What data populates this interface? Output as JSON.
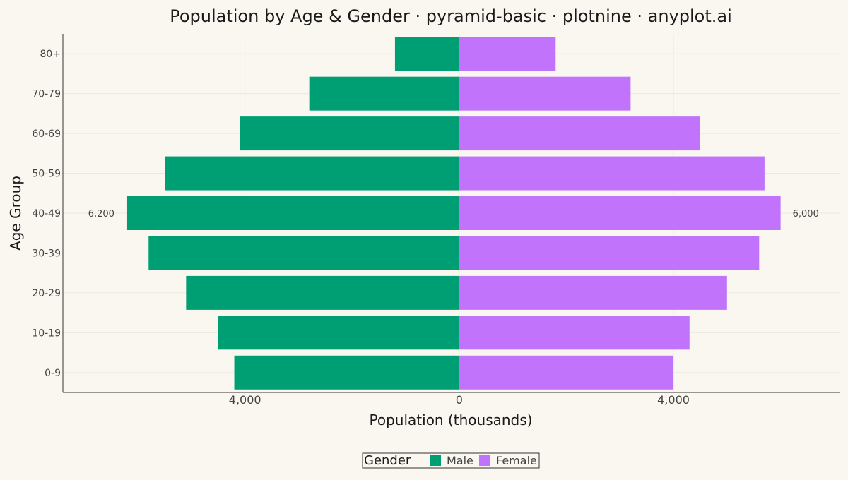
{
  "chart_data": {
    "type": "bar",
    "orientation": "horizontal-diverging",
    "title": "Population by Age & Gender · pyramid-basic · plotnine · anyplot.ai",
    "xlabel": "Population (thousands)",
    "ylabel": "Age Group",
    "categories": [
      "0-9",
      "10-19",
      "20-29",
      "30-39",
      "40-49",
      "50-59",
      "60-69",
      "70-79",
      "80+"
    ],
    "series": [
      {
        "name": "Male",
        "side": "left",
        "color": "#009E73",
        "values": [
          4200,
          4500,
          5100,
          5800,
          6200,
          5500,
          4100,
          2800,
          1200
        ]
      },
      {
        "name": "Female",
        "side": "right",
        "color": "#C174FB",
        "values": [
          4000,
          4300,
          5000,
          5600,
          6000,
          5700,
          4500,
          3200,
          1800
        ]
      }
    ],
    "xlim": [
      -7400,
      7100
    ],
    "xticks": [
      {
        "value": -4000,
        "label": "4,000"
      },
      {
        "value": 0,
        "label": "0"
      },
      {
        "value": 4000,
        "label": "4,000"
      }
    ],
    "data_labels": [
      {
        "series": "Male",
        "category": "40-49",
        "text": "6,200"
      },
      {
        "series": "Female",
        "category": "40-49",
        "text": "6,000"
      }
    ],
    "legend": {
      "title": "Gender",
      "position": "bottom",
      "entries": [
        "Male",
        "Female"
      ]
    },
    "grid": true,
    "colors": {
      "background": "#FAF7F1",
      "grid": "#EDE8DF",
      "axis": "#333333"
    }
  }
}
